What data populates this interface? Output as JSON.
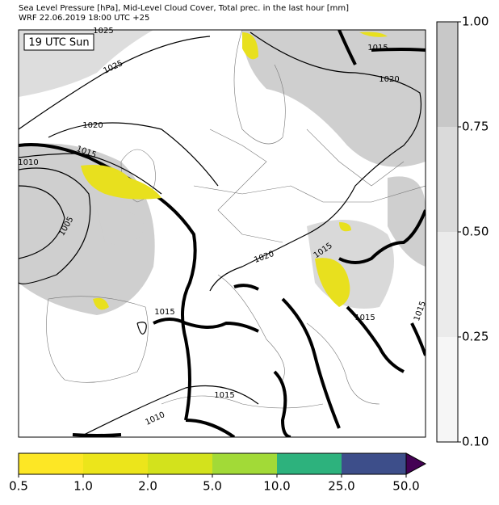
{
  "header": {
    "title_line1": "Sea Level Pressure [hPa], Mid-Level Cloud Cover, Total prec. in the last hour [mm]",
    "title_line2": "WRF 22.06.2019 18:00 UTC +25"
  },
  "map": {
    "time_label": "19 UTC Sun",
    "isobar_labels": [
      "1025",
      "1025",
      "1015",
      "1020",
      "1020",
      "1015",
      "1010",
      "1005",
      "1020",
      "1015",
      "1015",
      "1015",
      "1015",
      "1015",
      "1010"
    ]
  },
  "cloud_colorbar": {
    "labels": [
      "1.00",
      "0.75",
      "0.50",
      "0.25",
      "0.10"
    ],
    "colors": [
      "#c8c8c8",
      "#dadada",
      "#ebebeb",
      "#f6f6f6"
    ]
  },
  "precip_colorbar": {
    "labels": [
      "0.5",
      "1.0",
      "2.0",
      "5.0",
      "10.0",
      "25.0",
      "50.0"
    ],
    "colors": [
      "#fde725",
      "#ece51b",
      "#d3e21c",
      "#a2da37",
      "#2db27d",
      "#3d4e8a",
      "#440154"
    ]
  }
}
